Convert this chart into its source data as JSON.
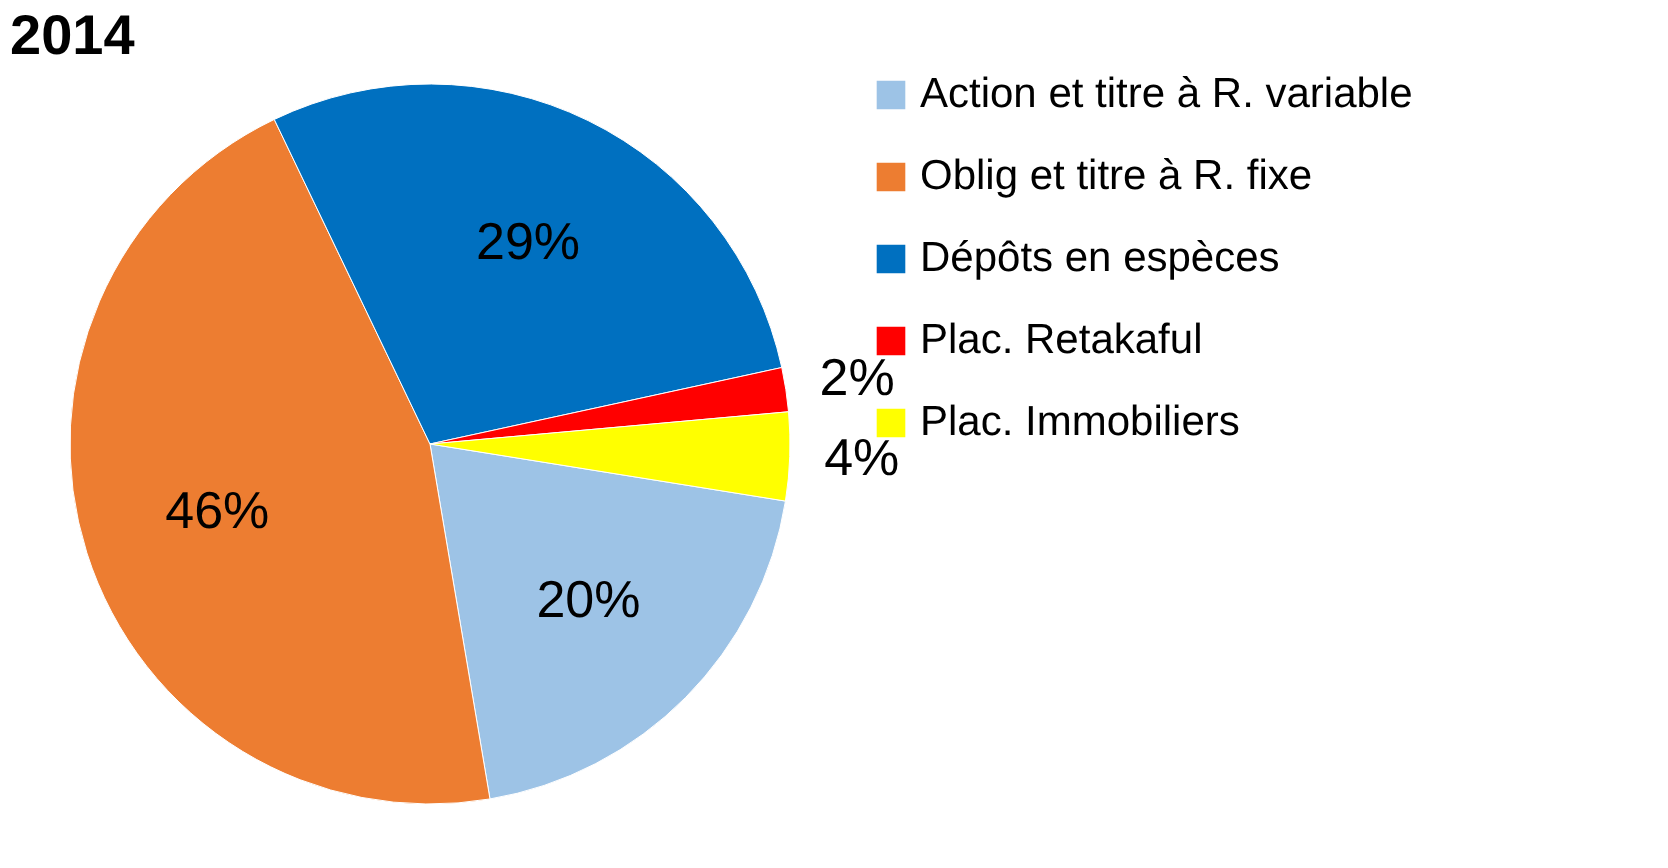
{
  "chart_data": {
    "type": "pie",
    "title": "2014",
    "categories": [
      "Action et titre à R. variable",
      "Oblig et titre à R. fixe",
      "Dépôts en espèces",
      "Plac. Retakaful",
      "Plac. Immobiliers"
    ],
    "values": [
      20,
      46,
      29,
      2,
      4
    ],
    "colors": [
      "#9dc3e6",
      "#ed7d31",
      "#0070c0",
      "#ff0000",
      "#ffff00"
    ],
    "value_labels": [
      "20%",
      "46%",
      "29%",
      "2%",
      "4%"
    ],
    "legend": "right"
  }
}
